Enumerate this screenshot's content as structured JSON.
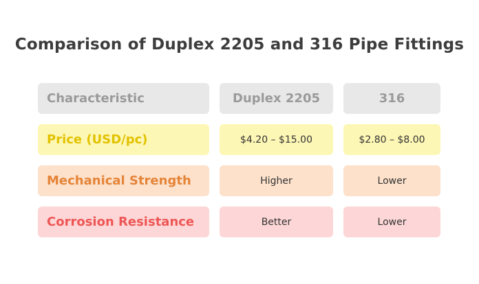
{
  "title": "Comparison of Duplex 2205 and 316 Pipe Fittings",
  "header": {
    "characteristic": "Characteristic",
    "col_a": "Duplex 2205",
    "col_b": "316"
  },
  "rows": [
    {
      "label": "Price (USD/pc)",
      "a": "$4.20 – $15.00",
      "b": "$2.80 – $8.00"
    },
    {
      "label": "Mechanical Strength",
      "a": "Higher",
      "b": "Lower"
    },
    {
      "label": "Corrosion Resistance",
      "a": "Better",
      "b": "Lower"
    }
  ],
  "colors": {
    "header_bg": "#e8e8e8",
    "price_bg": "#fdf7b5",
    "price_text": "#e2c200",
    "strength_bg": "#fde1cb",
    "strength_text": "#e58438",
    "corrosion_bg": "#fdd7d7",
    "corrosion_text": "#ee5656"
  }
}
